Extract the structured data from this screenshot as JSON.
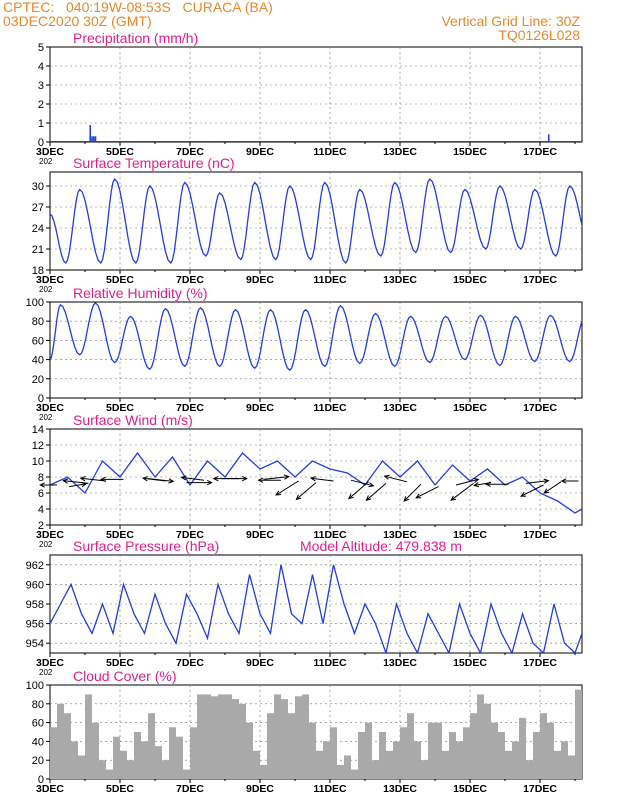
{
  "header": {
    "left_line1": "CPTEC:   040:19W-08:53S   CURACA (BA)",
    "left_line2": "03DEC2020 30Z (GMT)",
    "right_line1": "Vertical Grid Line: 30Z",
    "right_line2": "TQ0126L028"
  },
  "colors": {
    "header": "#e8882a",
    "title": "#e0208a",
    "line": "#1f3fe0",
    "bar": "#a9a9a9",
    "arrow": "#000000",
    "grid": "#777777"
  },
  "x_axis": {
    "start_day": 3,
    "end_day": 18.2,
    "tick_labels": [
      "3DEC",
      "5DEC",
      "7DEC",
      "9DEC",
      "11DEC",
      "13DEC",
      "15DEC",
      "17DEC"
    ],
    "tick_days": [
      3,
      5,
      7,
      9,
      11,
      13,
      15,
      17
    ],
    "year_fragment": "202"
  },
  "chart_data": [
    {
      "id": "precip",
      "type": "bar",
      "title": "Precipitation (mm/h)",
      "ylim": [
        0,
        5
      ],
      "yticks": [
        0,
        1,
        2,
        3,
        4,
        5
      ],
      "x": [
        4.15,
        4.2,
        4.25,
        4.3,
        17.25
      ],
      "values": [
        0.9,
        0.3,
        0.3,
        0.3,
        0.4
      ]
    },
    {
      "id": "temp",
      "type": "line",
      "title": "Surface Temperature (nC)",
      "ylim": [
        18,
        32
      ],
      "yticks": [
        18,
        21,
        24,
        27,
        30
      ],
      "min_values": [
        19,
        19,
        19,
        19,
        20,
        19.5,
        19.5,
        19.5,
        19,
        20,
        20.5,
        20.5,
        21,
        21,
        20,
        21
      ],
      "max_values": [
        26,
        29.5,
        31,
        30,
        30.5,
        29,
        30.5,
        30,
        30.5,
        29.5,
        30.5,
        31,
        29.5,
        30,
        29.5,
        30,
        31
      ]
    },
    {
      "id": "rh",
      "type": "line",
      "title": "Relative Humidity (%)",
      "ylim": [
        0,
        100
      ],
      "yticks": [
        0,
        20,
        40,
        60,
        80,
        100
      ],
      "max_values": [
        97,
        99,
        85,
        93,
        94,
        92,
        92,
        92,
        96,
        88,
        85,
        85,
        86,
        85,
        86,
        86
      ],
      "min_values": [
        40,
        45,
        37,
        30,
        33,
        33,
        31,
        29,
        33,
        36,
        33,
        37,
        40,
        34,
        38,
        38,
        36
      ]
    },
    {
      "id": "wind",
      "type": "line",
      "title": "Surface Wind (m/s)",
      "ylim": [
        2,
        14
      ],
      "yticks": [
        2,
        4,
        6,
        8,
        10,
        12,
        14
      ],
      "x": [
        3,
        3.5,
        4,
        4.5,
        5,
        5.5,
        6,
        6.5,
        7,
        7.5,
        8,
        8.5,
        9,
        9.5,
        10,
        10.5,
        11,
        11.5,
        12,
        12.5,
        13,
        13.5,
        14,
        14.5,
        15,
        15.5,
        16,
        16.5,
        17,
        17.5,
        18,
        18.2
      ],
      "values": [
        7,
        8,
        6,
        10,
        8,
        11,
        8,
        10.5,
        7,
        10,
        8,
        11,
        9,
        10,
        8,
        10,
        9,
        8.5,
        7,
        10,
        8,
        10,
        7,
        9.5,
        7.5,
        9,
        7,
        8,
        6,
        5,
        3.5,
        4
      ]
    },
    {
      "id": "pressure",
      "type": "line",
      "title": "Surface Pressure (hPa)",
      "annotation": "Model Altitude: 479.838  m",
      "ylim": [
        953,
        963
      ],
      "yticks": [
        954,
        956,
        958,
        960,
        962
      ],
      "x": [
        3,
        3.3,
        3.6,
        3.9,
        4.2,
        4.5,
        4.8,
        5.1,
        5.4,
        5.7,
        6,
        6.3,
        6.6,
        6.9,
        7.2,
        7.5,
        7.8,
        8.1,
        8.4,
        8.7,
        9,
        9.3,
        9.6,
        9.9,
        10.2,
        10.5,
        10.8,
        11.1,
        11.4,
        11.7,
        12,
        12.3,
        12.6,
        12.9,
        13.2,
        13.5,
        13.8,
        14.1,
        14.4,
        14.7,
        15,
        15.3,
        15.6,
        15.9,
        16.2,
        16.5,
        16.8,
        17.1,
        17.4,
        17.7,
        18,
        18.2
      ],
      "values": [
        956,
        958,
        960,
        957,
        955,
        958,
        955,
        960,
        957,
        955,
        959,
        956,
        954,
        959,
        957,
        954.5,
        960,
        957,
        955,
        961,
        957,
        955,
        962,
        957,
        956,
        961,
        956,
        962,
        958,
        955,
        958,
        956,
        953,
        958,
        955,
        953,
        957,
        955,
        953,
        958,
        955,
        953,
        958,
        955,
        953,
        957,
        954,
        953,
        958,
        954,
        953,
        955
      ]
    },
    {
      "id": "cloud",
      "type": "bar",
      "title": "Cloud Cover (%)",
      "ylim": [
        0,
        100
      ],
      "yticks": [
        0,
        20,
        40,
        60,
        80,
        100
      ],
      "x": [
        3.1,
        3.3,
        3.5,
        3.7,
        3.9,
        4.1,
        4.3,
        4.5,
        4.7,
        4.9,
        5.1,
        5.3,
        5.5,
        5.7,
        5.9,
        6.1,
        6.3,
        6.5,
        6.7,
        6.9,
        7.1,
        7.3,
        7.5,
        7.7,
        7.9,
        8.1,
        8.3,
        8.5,
        8.7,
        8.9,
        9.1,
        9.3,
        9.5,
        9.7,
        9.9,
        10.1,
        10.3,
        10.5,
        10.7,
        10.9,
        11.1,
        11.3,
        11.5,
        11.7,
        11.9,
        12.1,
        12.3,
        12.5,
        12.7,
        12.9,
        13.1,
        13.3,
        13.5,
        13.7,
        13.9,
        14.1,
        14.3,
        14.5,
        14.7,
        14.9,
        15.1,
        15.3,
        15.5,
        15.7,
        15.9,
        16.1,
        16.3,
        16.5,
        16.7,
        16.9,
        17.1,
        17.3,
        17.5,
        17.7,
        17.9,
        18.1
      ],
      "values": [
        55,
        80,
        70,
        40,
        25,
        90,
        60,
        20,
        10,
        45,
        30,
        20,
        50,
        40,
        70,
        35,
        20,
        55,
        45,
        10,
        55,
        90,
        90,
        88,
        90,
        90,
        85,
        80,
        60,
        30,
        15,
        70,
        90,
        85,
        70,
        88,
        90,
        60,
        30,
        40,
        55,
        15,
        25,
        10,
        50,
        60,
        20,
        50,
        30,
        40,
        55,
        70,
        40,
        20,
        60,
        60,
        30,
        50,
        40,
        55,
        70,
        90,
        80,
        60,
        50,
        30,
        40,
        65,
        20,
        50,
        70,
        60,
        30,
        40,
        25,
        95
      ]
    }
  ],
  "wind_arrows": {
    "x": [
      3.2,
      3.55,
      4.1,
      4.6,
      5.1,
      5.8,
      6.3,
      6.9,
      7.4,
      7.9,
      8.4,
      9.1,
      9.6,
      10.1,
      10.6,
      11.1,
      11.6,
      12.1,
      12.6,
      13.2,
      13.6,
      14.1,
      14.6,
      15.1,
      15.6,
      16.1,
      16.6,
      17.1,
      17.6,
      18.1
    ],
    "y": [
      7,
      6.8,
      7.2,
      7.5,
      7.7,
      7.8,
      7.5,
      7.3,
      7.6,
      7.8,
      7.8,
      7.7,
      7.6,
      7.5,
      7.3,
      7.5,
      7.6,
      7.4,
      7.2,
      7.4,
      7.1,
      6.8,
      7.0,
      7.2,
      7.3,
      7.1,
      7.2,
      7.0,
      7.4,
      7.5
    ],
    "u": [
      -0.6,
      0.6,
      -0.9,
      -0.9,
      -0.8,
      0.9,
      -0.8,
      0.9,
      -0.8,
      0.9,
      -0.9,
      0.9,
      -0.8,
      -0.8,
      -0.7,
      -0.8,
      0.8,
      -0.7,
      -0.7,
      -0.8,
      -0.6,
      -0.8,
      0.8,
      -0.8,
      -0.6,
      -0.8,
      0.8,
      -0.8,
      -0.6,
      -0.6
    ],
    "v": [
      0.0,
      0.1,
      0.1,
      0.1,
      0.0,
      -0.1,
      0.1,
      0.0,
      0.1,
      0.0,
      0.0,
      0.1,
      0.0,
      -0.5,
      -0.6,
      0.1,
      -0.2,
      -0.6,
      -0.6,
      0.2,
      -0.6,
      -0.4,
      0.2,
      -0.6,
      -0.1,
      0.0,
      0.1,
      -0.4,
      -0.4,
      0.0
    ]
  }
}
